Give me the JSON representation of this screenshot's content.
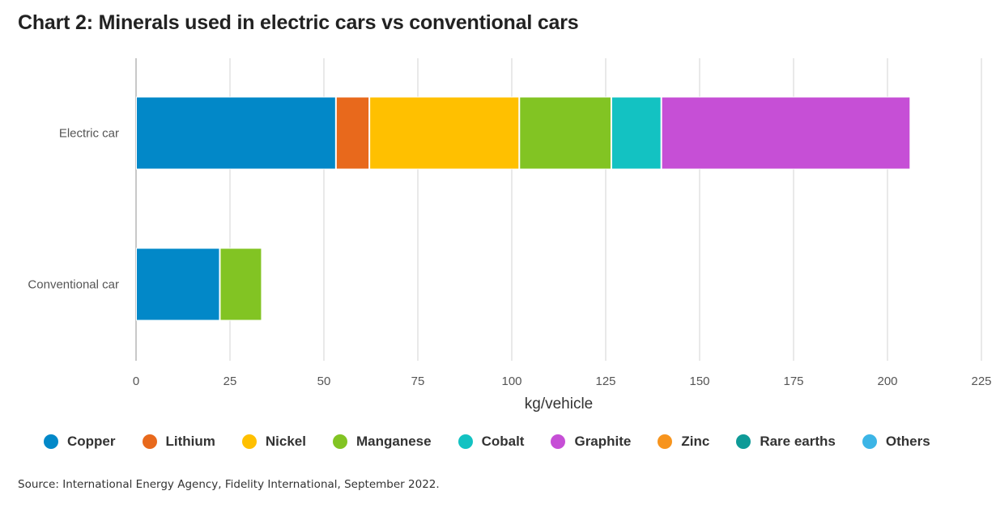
{
  "title": "Chart 2: Minerals used in electric cars vs conventional cars",
  "source": "Source: International Energy Agency, Fidelity International, September 2022.",
  "chart_data": {
    "type": "bar",
    "orientation": "horizontal",
    "stacked": true,
    "title": "Chart 2: Minerals used in electric cars vs conventional cars",
    "xlabel": "kg/vehicle",
    "ylabel": "",
    "xlim": [
      0,
      225
    ],
    "xticks": [
      0,
      25,
      50,
      75,
      100,
      125,
      150,
      175,
      200,
      225
    ],
    "grid": true,
    "legend_position": "bottom",
    "categories": [
      "Electric car",
      "Conventional car"
    ],
    "series": [
      {
        "name": "Copper",
        "color": "#0288c8",
        "values": [
          53.2,
          22.3
        ]
      },
      {
        "name": "Lithium",
        "color": "#e8691c",
        "values": [
          8.9,
          0
        ]
      },
      {
        "name": "Nickel",
        "color": "#ffc000",
        "values": [
          39.9,
          0
        ]
      },
      {
        "name": "Manganese",
        "color": "#82c423",
        "values": [
          24.5,
          11.2
        ]
      },
      {
        "name": "Cobalt",
        "color": "#13c2c2",
        "values": [
          13.3,
          0
        ]
      },
      {
        "name": "Graphite",
        "color": "#c64fd6",
        "values": [
          66.3,
          0
        ]
      },
      {
        "name": "Zinc",
        "color": "#f7941d",
        "values": [
          0,
          0
        ]
      },
      {
        "name": "Rare earths",
        "color": "#0e9a97",
        "values": [
          0,
          0
        ]
      },
      {
        "name": "Others",
        "color": "#3cb5e6",
        "values": [
          0,
          0
        ]
      }
    ]
  }
}
